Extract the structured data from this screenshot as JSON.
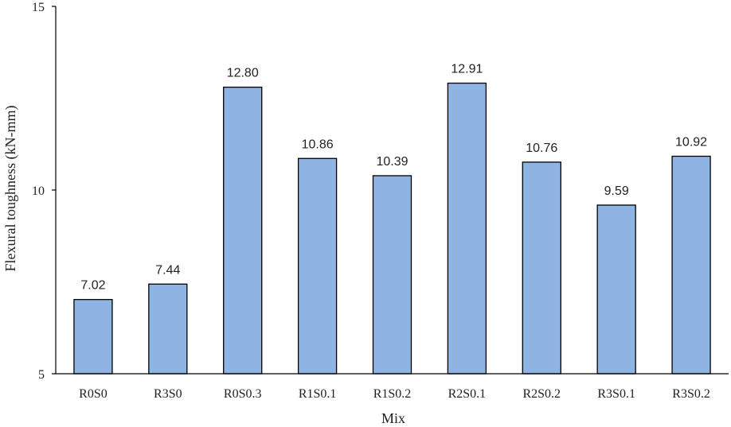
{
  "chart_data": {
    "type": "bar",
    "title": "",
    "xlabel": "Mix",
    "ylabel": "Flexural  toughness (kN-mm)",
    "ylim": [
      5,
      15
    ],
    "yticks": [
      5,
      10,
      15
    ],
    "grid": false,
    "legend": "none",
    "categories": [
      "R0S0",
      "R3S0",
      "R0S0.3",
      "R1S0.1",
      "R1S0.2",
      "R2S0.1",
      "R2S0.2",
      "R3S0.1",
      "R3S0.2"
    ],
    "values": [
      7.02,
      7.44,
      12.8,
      10.86,
      10.39,
      12.91,
      10.76,
      9.59,
      10.92
    ],
    "data_labels": [
      "7.02",
      "7.44",
      "12.80",
      "10.86",
      "10.39",
      "12.91",
      "10.76",
      "9.59",
      "10.92"
    ],
    "colors": {
      "bar_fill": "#8EB4E3",
      "bar_stroke": "#000000",
      "axis": "#000000",
      "text": "#222222"
    }
  }
}
